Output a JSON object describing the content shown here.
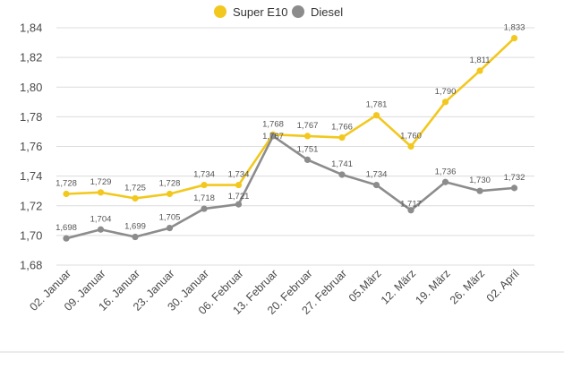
{
  "chart_data": {
    "type": "line",
    "categories": [
      "02. Januar",
      "09. Januar",
      "16. Januar",
      "23. Januar",
      "30. Januar",
      "06. Februar",
      "13. Februar",
      "20. Februar",
      "27. Februar",
      "05.März",
      "12. März",
      "19. März",
      "26. März",
      "02. April"
    ],
    "series": [
      {
        "name": "Super E10",
        "color": "#f2c81e",
        "values": [
          1.728,
          1.729,
          1.725,
          1.728,
          1.734,
          1.734,
          1.768,
          1.767,
          1.766,
          1.781,
          1.76,
          1.79,
          1.811,
          1.833
        ],
        "labels": [
          "1,728",
          "1,729",
          "1,725",
          "1,728",
          "1,734",
          "1,734",
          "1,768",
          "1,767",
          "1,766",
          "1,781",
          "1,760",
          "1,790",
          "1,811",
          "1,833"
        ]
      },
      {
        "name": "Diesel",
        "color": "#8c8c8c",
        "values": [
          1.698,
          1.704,
          1.699,
          1.705,
          1.718,
          1.721,
          1.767,
          1.751,
          1.741,
          1.734,
          1.717,
          1.736,
          1.73,
          1.732
        ],
        "labels": [
          "1,698",
          "1,704",
          "1,699",
          "1,705",
          "1,718",
          "1,721",
          "1,767",
          "1,751",
          "1,741",
          "1,734",
          "1,717",
          "1,736",
          "1,730",
          "1,732"
        ]
      }
    ],
    "ylim": [
      1.68,
      1.84
    ],
    "yticks": [
      1.68,
      1.7,
      1.72,
      1.74,
      1.76,
      1.78,
      1.8,
      1.82,
      1.84
    ],
    "ytick_labels": [
      "1,68",
      "1,70",
      "1,72",
      "1,74",
      "1,76",
      "1,78",
      "1,80",
      "1,82",
      "1,84"
    ],
    "grid": "horizontal",
    "legend": "top-center",
    "title": "",
    "xlabel": "",
    "ylabel": ""
  }
}
